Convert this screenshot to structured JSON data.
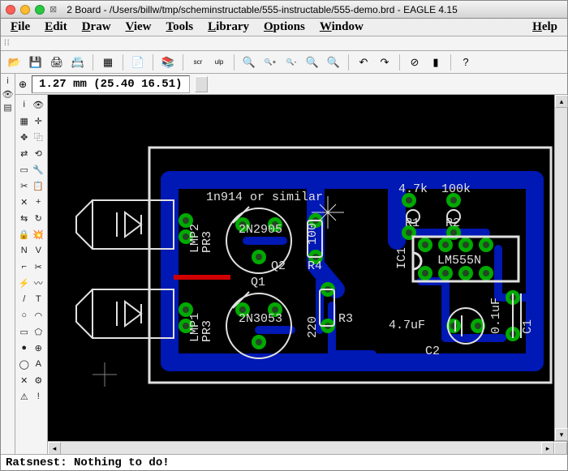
{
  "window": {
    "title": "2 Board - /Users/billw/tmp/scheminstructable/555-instructable/555-demo.brd - EAGLE 4.15"
  },
  "menubar": {
    "items": [
      "File",
      "Edit",
      "Draw",
      "View",
      "Tools",
      "Library",
      "Options",
      "Window"
    ],
    "help": "Help"
  },
  "coords": {
    "gridUnit": "1.27 mm",
    "pos": "(25.40 16.51)"
  },
  "status": {
    "text": "Ratsnest: Nothing to do!"
  },
  "colors": {
    "trace": "#0018b4",
    "pad": "#00aa00",
    "padhole": "#244624",
    "silk": "#e0e0e0",
    "red": "#d00000",
    "grey": "#808080",
    "bg": "#000000"
  },
  "pcb": {
    "labels": {
      "diodeText": "1n914 or similar",
      "q1": "Q1",
      "q1part": "2N3053",
      "q2": "Q2",
      "q2part": "2N2905",
      "lmp1": "LMP1",
      "pr3a": "PR3",
      "lmp2": "LMP2",
      "pr3b": "PR3",
      "r1": "R1",
      "r1val": "4.7k",
      "r2": "R2",
      "r2val": "100k",
      "r3": "R3",
      "r3val": "220",
      "r4": "R4",
      "r4val": "100",
      "c1": "C1",
      "c1val": "0.1uF",
      "c2": "C2",
      "c2val": "4.7uF",
      "ic1": "IC1",
      "ic1part": "LM555N"
    }
  },
  "topIcons": [
    {
      "name": "open-icon",
      "glyph": "📂"
    },
    {
      "name": "save-icon",
      "glyph": "💾"
    },
    {
      "name": "print-icon",
      "glyph": "🖨"
    },
    {
      "name": "cam-icon",
      "glyph": "📇"
    },
    {
      "name": "sep"
    },
    {
      "name": "board-icon",
      "glyph": "▦"
    },
    {
      "name": "sep"
    },
    {
      "name": "sheet-icon",
      "glyph": "📄"
    },
    {
      "name": "sep"
    },
    {
      "name": "library-icon",
      "glyph": "📚"
    },
    {
      "name": "sep"
    },
    {
      "name": "script-icon",
      "glyph": "scr"
    },
    {
      "name": "ulp-icon",
      "glyph": "ulp"
    },
    {
      "name": "sep"
    },
    {
      "name": "zoom-fit-icon",
      "glyph": "🔍"
    },
    {
      "name": "zoom-in-icon",
      "glyph": "🔍+"
    },
    {
      "name": "zoom-out-icon",
      "glyph": "🔍-"
    },
    {
      "name": "zoom-redraw-icon",
      "glyph": "🔍"
    },
    {
      "name": "zoom-select-icon",
      "glyph": "🔍"
    },
    {
      "name": "sep"
    },
    {
      "name": "undo-icon",
      "glyph": "↶"
    },
    {
      "name": "redo-icon",
      "glyph": "↷"
    },
    {
      "name": "sep"
    },
    {
      "name": "stop-icon",
      "glyph": "⊘"
    },
    {
      "name": "go-icon",
      "glyph": "▮"
    },
    {
      "name": "sep"
    },
    {
      "name": "help-icon",
      "glyph": "?"
    }
  ],
  "leftIcons": [
    {
      "name": "info-icon",
      "glyph": "i"
    },
    {
      "name": "eye-icon",
      "glyph": "👁"
    },
    {
      "name": "layers-icon",
      "glyph": "▤"
    }
  ],
  "tools": [
    {
      "n": "info",
      "g": "i"
    },
    {
      "n": "show",
      "g": "👁"
    },
    {
      "n": "layer",
      "g": "▦"
    },
    {
      "n": "mark",
      "g": "✛"
    },
    {
      "n": "move",
      "g": "✥"
    },
    {
      "n": "copy",
      "g": "⿻"
    },
    {
      "n": "mirror",
      "g": "⇄"
    },
    {
      "n": "rotate",
      "g": "⟲"
    },
    {
      "n": "group",
      "g": "▭"
    },
    {
      "n": "change",
      "g": "🔧"
    },
    {
      "n": "cut",
      "g": "✂"
    },
    {
      "n": "paste",
      "g": "📋"
    },
    {
      "n": "delete",
      "g": "✕"
    },
    {
      "n": "add",
      "g": "+"
    },
    {
      "n": "pinswap",
      "g": "⇆"
    },
    {
      "n": "replace",
      "g": "↻"
    },
    {
      "n": "lock",
      "g": "🔒"
    },
    {
      "n": "smash",
      "g": "💥"
    },
    {
      "n": "name",
      "g": "N"
    },
    {
      "n": "value",
      "g": "V"
    },
    {
      "n": "miter",
      "g": "⌐"
    },
    {
      "n": "split",
      "g": "✂"
    },
    {
      "n": "optimize",
      "g": "⚡"
    },
    {
      "n": "meander",
      "g": "〰"
    },
    {
      "n": "wire",
      "g": "/"
    },
    {
      "n": "text",
      "g": "T"
    },
    {
      "n": "circle",
      "g": "○"
    },
    {
      "n": "arc",
      "g": "◠"
    },
    {
      "n": "rect",
      "g": "▭"
    },
    {
      "n": "polygon",
      "g": "⬠"
    },
    {
      "n": "via",
      "g": "●"
    },
    {
      "n": "signal",
      "g": "⊕"
    },
    {
      "n": "hole",
      "g": "◯"
    },
    {
      "n": "attribute",
      "g": "A"
    },
    {
      "n": "ratsnest",
      "g": "✕"
    },
    {
      "n": "auto",
      "g": "⚙"
    },
    {
      "n": "erc",
      "g": "⚠"
    },
    {
      "n": "errors",
      "g": "!"
    }
  ]
}
